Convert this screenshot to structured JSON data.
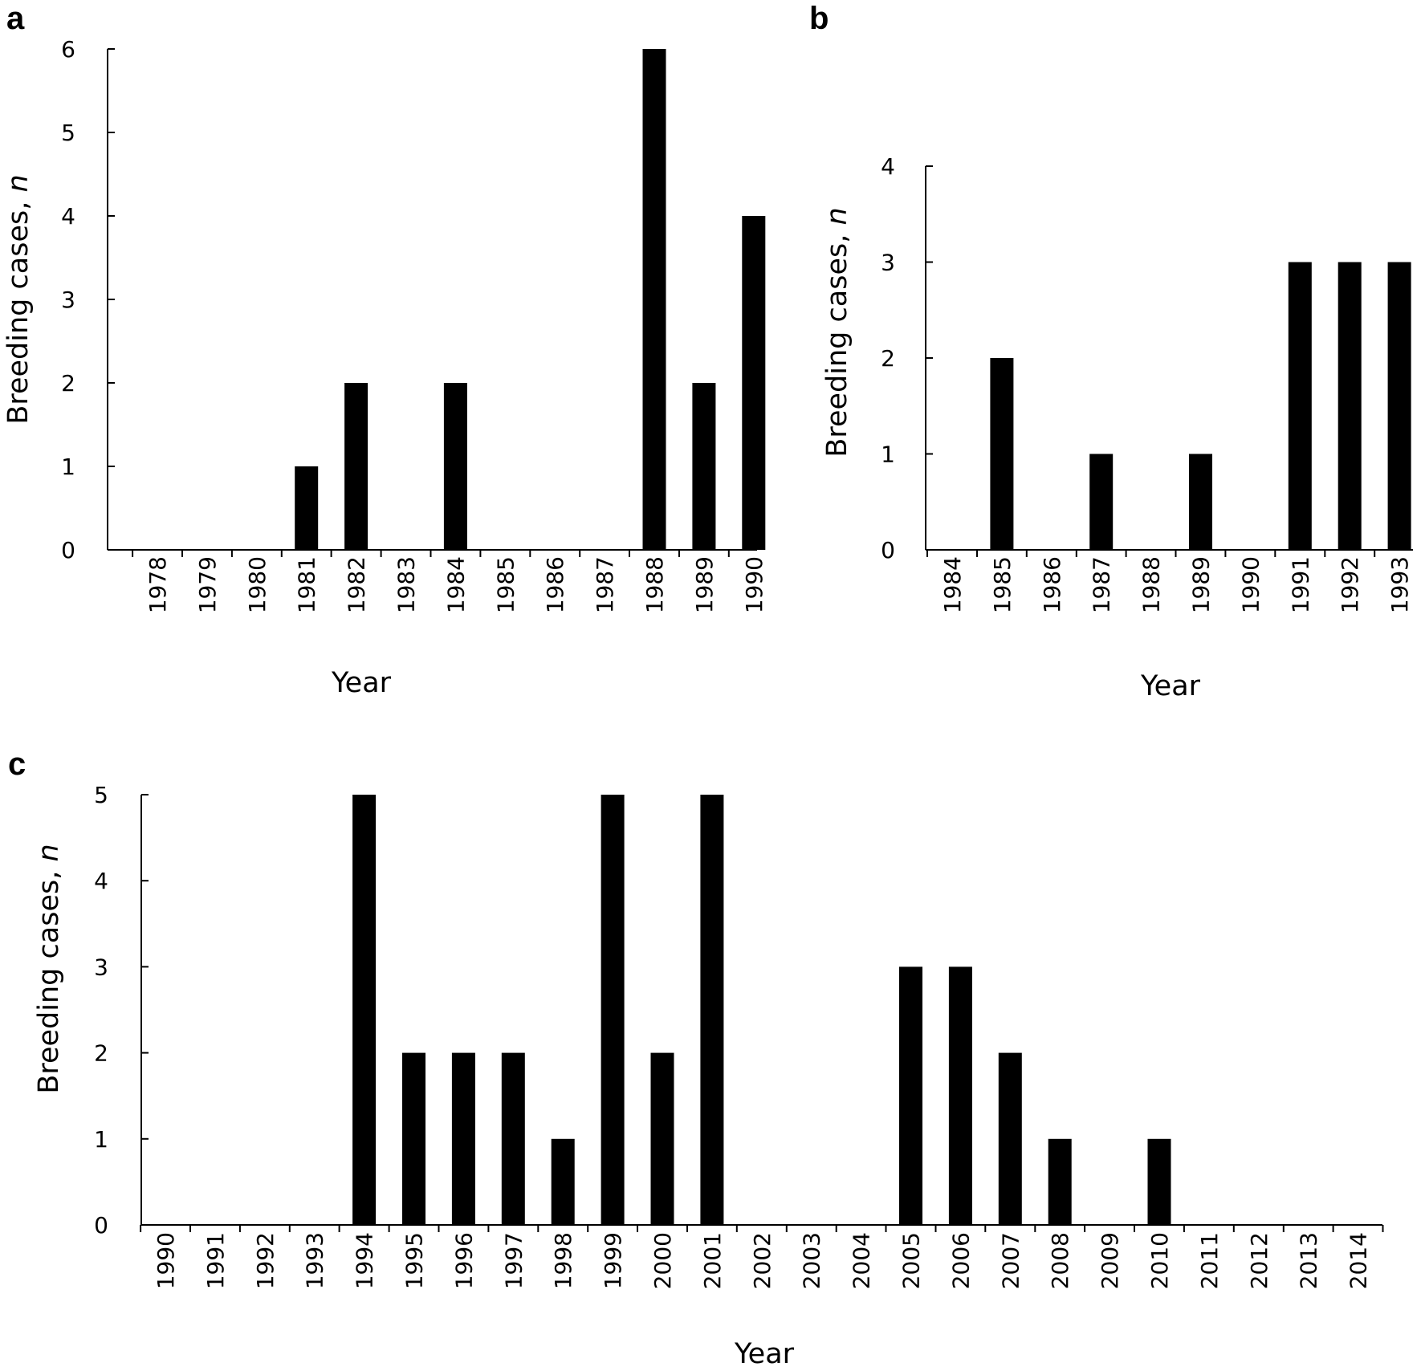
{
  "chart_data": [
    {
      "panel": "a",
      "type": "bar",
      "categories": [
        "1978",
        "1979",
        "1980",
        "1981",
        "1982",
        "1983",
        "1984",
        "1985",
        "1986",
        "1987",
        "1988",
        "1989",
        "1990"
      ],
      "values": [
        0,
        0,
        0,
        1,
        2,
        0,
        2,
        0,
        0,
        0,
        6,
        2,
        4
      ],
      "xlabel": "Year",
      "ylabel": "Breeding cases, ",
      "ylabel_italic": "n",
      "ylim": [
        0,
        6
      ],
      "yticks": [
        0,
        1,
        2,
        3,
        4,
        5,
        6
      ],
      "bar_color": "#000000",
      "grid": false
    },
    {
      "panel": "b",
      "type": "bar",
      "categories": [
        "1984",
        "1985",
        "1986",
        "1987",
        "1988",
        "1989",
        "1990",
        "1991",
        "1992",
        "1993"
      ],
      "values": [
        0,
        2,
        0,
        1,
        0,
        1,
        0,
        3,
        3,
        3
      ],
      "xlabel": "Year",
      "ylabel": "Breeding cases, ",
      "ylabel_italic": "n",
      "ylim": [
        0,
        4
      ],
      "yticks": [
        0,
        1,
        2,
        3,
        4
      ],
      "bar_color": "#000000",
      "grid": false
    },
    {
      "panel": "c",
      "type": "bar",
      "categories": [
        "1990",
        "1991",
        "1992",
        "1993",
        "1994",
        "1995",
        "1996",
        "1997",
        "1998",
        "1999",
        "2000",
        "2001",
        "2002",
        "2003",
        "2004",
        "2005",
        "2006",
        "2007",
        "2008",
        "2009",
        "2010",
        "2011",
        "2012",
        "2013",
        "2014"
      ],
      "values": [
        0,
        0,
        0,
        0,
        5,
        2,
        2,
        2,
        1,
        5,
        2,
        5,
        0,
        0,
        0,
        3,
        3,
        2,
        1,
        0,
        1,
        0,
        0,
        0,
        0
      ],
      "xlabel": "Year",
      "ylabel": "Breeding cases, ",
      "ylabel_italic": "n",
      "ylim": [
        0,
        5
      ],
      "yticks": [
        0,
        1,
        2,
        3,
        4,
        5
      ],
      "bar_color": "#000000",
      "grid": false
    }
  ]
}
